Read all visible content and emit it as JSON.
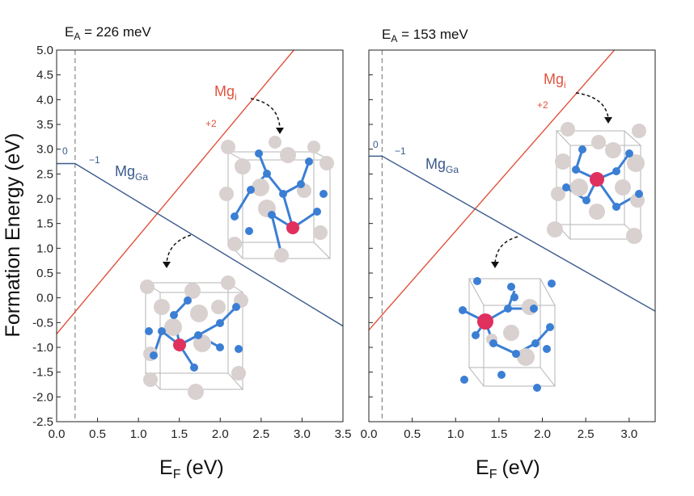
{
  "figure": {
    "ylabel": "Formation Energy (eV)",
    "xlabel_main": "E",
    "xlabel_sub": "F",
    "xlabel_unit": "(eV)",
    "colors": {
      "mg_i_line": "#e0533d",
      "mg_ga_line": "#3a5a8c",
      "vbm_dash": "#888888",
      "ga_atom": "#d9d0d0",
      "n_atom": "#3b7fd4",
      "mg_atom": "#e0305e",
      "cell_edge": "#b5b5b5",
      "arrow": "#111111"
    }
  },
  "chart_data": [
    {
      "type": "line",
      "title_main": "E",
      "title_sub": "A",
      "title_value": " = 226 meV",
      "xlim": [
        0.0,
        3.5
      ],
      "ylim": [
        -2.5,
        5.0
      ],
      "xticks": [
        "0.0",
        "0.5",
        "1.0",
        "1.5",
        "2.0",
        "2.5",
        "3.0",
        "3.5"
      ],
      "yticks": [
        "-2.5",
        "-2.0",
        "-1.5",
        "-1.0",
        "-0.5",
        "0.0",
        "0.5",
        "1.0",
        "1.5",
        "2.0",
        "2.5",
        "3.0",
        "3.5",
        "4.0",
        "4.5",
        "5.0"
      ],
      "vline_x": 0.226,
      "series": [
        {
          "name": "Mg_i",
          "label_main": "Mg",
          "label_sub": "i",
          "charge": "+2",
          "color_key": "mg_i_line",
          "x": [
            0.0,
            2.9
          ],
          "y": [
            -0.73,
            5.0
          ]
        },
        {
          "name": "Mg_Ga",
          "label_main": "Mg",
          "label_sub": "Ga",
          "charge_left": "0",
          "charge_right": "−1",
          "color_key": "mg_ga_line",
          "x": [
            0.0,
            0.226,
            3.5
          ],
          "y": [
            2.71,
            2.71,
            -0.57
          ]
        }
      ]
    },
    {
      "type": "line",
      "title_main": "E",
      "title_sub": "A",
      "title_value": " = 153 meV",
      "xlim": [
        0.0,
        3.3
      ],
      "ylim": [
        -2.5,
        5.0
      ],
      "xticks": [
        "0.0",
        "0.5",
        "1.0",
        "1.5",
        "2.0",
        "2.5",
        "3.0"
      ],
      "yticks": [],
      "vline_x": 0.153,
      "series": [
        {
          "name": "Mg_i",
          "label_main": "Mg",
          "label_sub": "i",
          "charge": "+2",
          "color_key": "mg_i_line",
          "x": [
            0.0,
            2.83
          ],
          "y": [
            -0.65,
            5.0
          ]
        },
        {
          "name": "Mg_Ga",
          "label_main": "Mg",
          "label_sub": "Ga",
          "charge_left": "0",
          "charge_right": "−1",
          "color_key": "mg_ga_line",
          "x": [
            0.0,
            0.153,
            3.3
          ],
          "y": [
            2.86,
            2.86,
            -0.27
          ]
        }
      ]
    }
  ]
}
